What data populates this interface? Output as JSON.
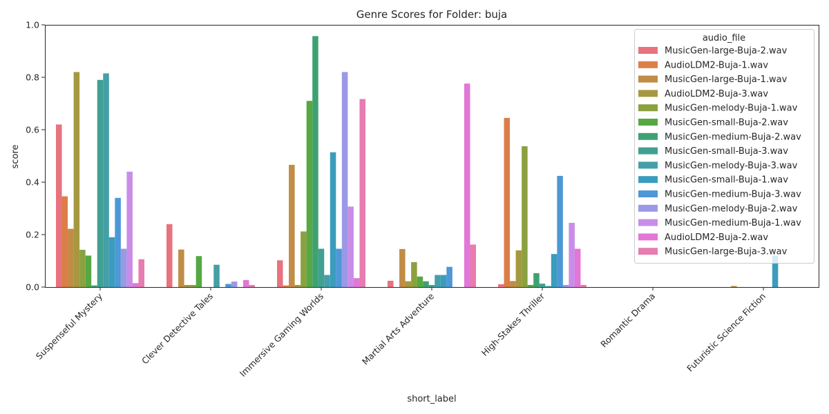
{
  "chart_data": {
    "type": "bar",
    "title": "Genre Scores for Folder: buja",
    "xlabel": "short_label",
    "ylabel": "score",
    "ylim": [
      0,
      1.0
    ],
    "yticks": [
      "0.0",
      "0.2",
      "0.4",
      "0.6",
      "0.8",
      "1.0"
    ],
    "grid": false,
    "legend_title": "audio_file",
    "legend_position": "top-right",
    "categories": [
      "Suspenseful Mystery",
      "Clever Detective Tales",
      "Immersive Gaming Worlds",
      "Martial Arts Adventure",
      "High-Stakes Thriller",
      "Romantic Drama",
      "Futuristic Science Fiction"
    ],
    "series": [
      {
        "name": "MusicGen-large-Buja-2.wav",
        "color": "#e8737f",
        "values": [
          0.62,
          0.24,
          0.102,
          0.024,
          0.011,
          0.0,
          0.0
        ]
      },
      {
        "name": "AudioLDM2-Buja-1.wav",
        "color": "#dc7e47",
        "values": [
          0.346,
          0.0,
          0.006,
          0.0,
          0.645,
          0.0,
          0.0
        ]
      },
      {
        "name": "MusicGen-large-Buja-1.wav",
        "color": "#c18c45",
        "values": [
          0.222,
          0.143,
          0.466,
          0.145,
          0.023,
          0.0,
          0.004
        ]
      },
      {
        "name": "AudioLDM2-Buja-3.wav",
        "color": "#a69840",
        "values": [
          0.82,
          0.008,
          0.008,
          0.022,
          0.14,
          0.0,
          0.0
        ]
      },
      {
        "name": "MusicGen-melody-Buja-1.wav",
        "color": "#8ba140",
        "values": [
          0.142,
          0.008,
          0.212,
          0.095,
          0.537,
          0.0,
          0.0
        ]
      },
      {
        "name": "MusicGen-small-Buja-2.wav",
        "color": "#56a843",
        "values": [
          0.12,
          0.118,
          0.71,
          0.04,
          0.008,
          0.0,
          0.0
        ]
      },
      {
        "name": "MusicGen-medium-Buja-2.wav",
        "color": "#3fa171",
        "values": [
          0.006,
          0.0,
          0.957,
          0.022,
          0.053,
          0.0,
          0.0
        ]
      },
      {
        "name": "MusicGen-small-Buja-3.wav",
        "color": "#40a092",
        "values": [
          0.79,
          0.0,
          0.146,
          0.008,
          0.013,
          0.0,
          0.0
        ]
      },
      {
        "name": "MusicGen-melody-Buja-3.wav",
        "color": "#449fa7",
        "values": [
          0.815,
          0.085,
          0.046,
          0.046,
          0.004,
          0.0,
          0.0
        ]
      },
      {
        "name": "MusicGen-small-Buja-1.wav",
        "color": "#3b9cbd",
        "values": [
          0.19,
          0.0,
          0.514,
          0.046,
          0.126,
          0.0,
          0.12
        ]
      },
      {
        "name": "MusicGen-medium-Buja-3.wav",
        "color": "#4d98d6",
        "values": [
          0.34,
          0.012,
          0.146,
          0.077,
          0.424,
          0.0,
          0.0
        ]
      },
      {
        "name": "MusicGen-melody-Buja-2.wav",
        "color": "#9b99e6",
        "values": [
          0.146,
          0.021,
          0.82,
          0.0,
          0.008,
          0.0,
          0.0
        ]
      },
      {
        "name": "MusicGen-medium-Buja-1.wav",
        "color": "#c98de8",
        "values": [
          0.44,
          0.0,
          0.307,
          0.0,
          0.245,
          0.0,
          0.0
        ]
      },
      {
        "name": "AudioLDM2-Buja-2.wav",
        "color": "#e277d6",
        "values": [
          0.015,
          0.027,
          0.034,
          0.776,
          0.146,
          0.0,
          0.0
        ]
      },
      {
        "name": "MusicGen-large-Buja-3.wav",
        "color": "#e67cb0",
        "values": [
          0.106,
          0.008,
          0.717,
          0.162,
          0.008,
          0.0,
          0.0
        ]
      }
    ]
  }
}
